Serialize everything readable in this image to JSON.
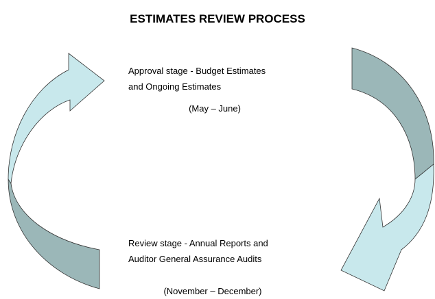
{
  "title": "ESTIMATES REVIEW PROCESS",
  "approval": {
    "lines": [
      "Approval stage  - Budget Estimates",
      "and Ongoing Estimates"
    ],
    "period": "(May – June)"
  },
  "review": {
    "lines": [
      "Review stage  - Annual Reports and",
      "Auditor General Assurance Audits"
    ],
    "period": "(November – December)"
  }
}
